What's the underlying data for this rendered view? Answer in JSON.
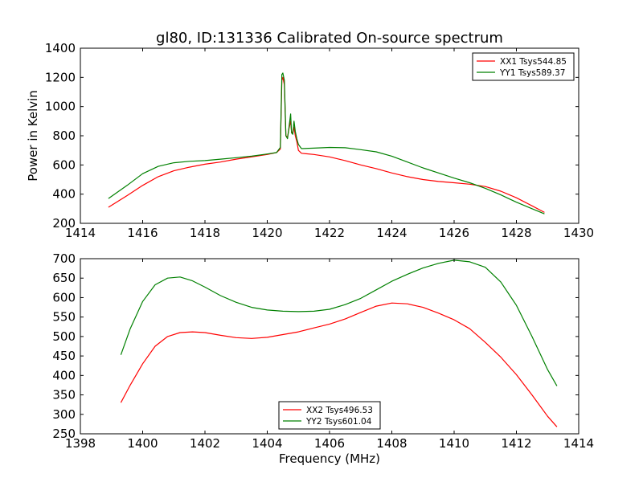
{
  "chart_data": [
    {
      "type": "line",
      "title": "gl80, ID:131336 Calibrated On-source spectrum",
      "xlabel": "",
      "ylabel": "Power in Kelvin",
      "xlim": [
        1414,
        1430
      ],
      "ylim": [
        200,
        1400
      ],
      "xticks": [
        "1414",
        "1416",
        "1418",
        "1420",
        "1422",
        "1424",
        "1426",
        "1428",
        "1430"
      ],
      "yticks": [
        "200",
        "400",
        "600",
        "800",
        "1000",
        "1200",
        "1400"
      ],
      "grid": false,
      "legend": "top-right",
      "series": [
        {
          "name": "XX1 Tsys544.85",
          "color": "#ff0000",
          "x": [
            1414.9,
            1415.5,
            1416.0,
            1416.5,
            1417.0,
            1417.5,
            1418.0,
            1418.5,
            1419.0,
            1419.5,
            1420.0,
            1420.3,
            1420.42,
            1420.47,
            1420.5,
            1420.55,
            1420.6,
            1420.65,
            1420.7,
            1420.75,
            1420.78,
            1420.82,
            1420.86,
            1420.9,
            1420.95,
            1421.0,
            1421.1,
            1421.5,
            1422.0,
            1422.5,
            1423.0,
            1423.5,
            1424.0,
            1424.5,
            1425.0,
            1425.5,
            1426.0,
            1426.5,
            1427.0,
            1427.5,
            1428.0,
            1428.5,
            1428.9
          ],
          "y": [
            310,
            390,
            460,
            520,
            560,
            585,
            605,
            620,
            640,
            655,
            672,
            685,
            710,
            1180,
            1200,
            1150,
            800,
            790,
            850,
            900,
            830,
            820,
            860,
            800,
            760,
            700,
            680,
            672,
            655,
            630,
            600,
            575,
            545,
            520,
            500,
            487,
            478,
            468,
            452,
            420,
            375,
            320,
            275
          ]
        },
        {
          "name": "YY1 Tsys589.37",
          "color": "#008000",
          "x": [
            1414.9,
            1415.5,
            1416.0,
            1416.5,
            1417.0,
            1417.5,
            1418.0,
            1418.5,
            1419.0,
            1419.5,
            1420.0,
            1420.3,
            1420.42,
            1420.47,
            1420.5,
            1420.55,
            1420.6,
            1420.65,
            1420.7,
            1420.75,
            1420.78,
            1420.82,
            1420.86,
            1420.9,
            1420.95,
            1421.0,
            1421.1,
            1421.5,
            1422.0,
            1422.5,
            1423.0,
            1423.5,
            1424.0,
            1424.5,
            1425.0,
            1425.5,
            1426.0,
            1426.5,
            1427.0,
            1427.5,
            1428.0,
            1428.5,
            1428.9
          ],
          "y": [
            370,
            460,
            540,
            590,
            615,
            625,
            630,
            640,
            650,
            660,
            675,
            685,
            720,
            1220,
            1230,
            1180,
            800,
            780,
            860,
            950,
            820,
            810,
            900,
            830,
            780,
            740,
            712,
            715,
            720,
            718,
            705,
            690,
            660,
            620,
            580,
            545,
            510,
            478,
            440,
            395,
            345,
            300,
            265
          ]
        }
      ]
    },
    {
      "type": "line",
      "title": "",
      "xlabel": "Frequency (MHz)",
      "ylabel": "",
      "xlim": [
        1398,
        1414
      ],
      "ylim": [
        250,
        700
      ],
      "xticks": [
        "1398",
        "1400",
        "1402",
        "1404",
        "1406",
        "1408",
        "1410",
        "1412",
        "1414"
      ],
      "yticks": [
        "250",
        "300",
        "350",
        "400",
        "450",
        "500",
        "550",
        "600",
        "650",
        "700"
      ],
      "grid": false,
      "legend": "bottom-center",
      "series": [
        {
          "name": "XX2 Tsys496.53",
          "color": "#ff0000",
          "x": [
            1399.3,
            1399.6,
            1400.0,
            1400.4,
            1400.8,
            1401.2,
            1401.6,
            1402.0,
            1402.5,
            1403.0,
            1403.5,
            1404.0,
            1404.5,
            1405.0,
            1405.5,
            1406.0,
            1406.5,
            1407.0,
            1407.5,
            1408.0,
            1408.5,
            1409.0,
            1409.5,
            1410.0,
            1410.5,
            1411.0,
            1411.5,
            1412.0,
            1412.5,
            1413.0,
            1413.3
          ],
          "y": [
            330,
            375,
            430,
            475,
            500,
            510,
            512,
            510,
            503,
            497,
            495,
            498,
            505,
            512,
            522,
            532,
            545,
            562,
            578,
            586,
            584,
            575,
            560,
            543,
            520,
            485,
            447,
            402,
            350,
            295,
            268
          ]
        },
        {
          "name": "YY2 Tsys601.04",
          "color": "#008000",
          "x": [
            1399.3,
            1399.6,
            1400.0,
            1400.4,
            1400.8,
            1401.2,
            1401.6,
            1402.0,
            1402.5,
            1403.0,
            1403.5,
            1404.0,
            1404.5,
            1405.0,
            1405.5,
            1406.0,
            1406.5,
            1407.0,
            1407.5,
            1408.0,
            1408.5,
            1409.0,
            1409.5,
            1410.0,
            1410.5,
            1411.0,
            1411.5,
            1412.0,
            1412.5,
            1413.0,
            1413.3
          ],
          "y": [
            453,
            520,
            590,
            633,
            650,
            653,
            643,
            627,
            605,
            588,
            575,
            568,
            565,
            564,
            565,
            570,
            582,
            598,
            620,
            642,
            660,
            676,
            688,
            696,
            692,
            678,
            640,
            580,
            500,
            415,
            373
          ]
        }
      ]
    }
  ]
}
